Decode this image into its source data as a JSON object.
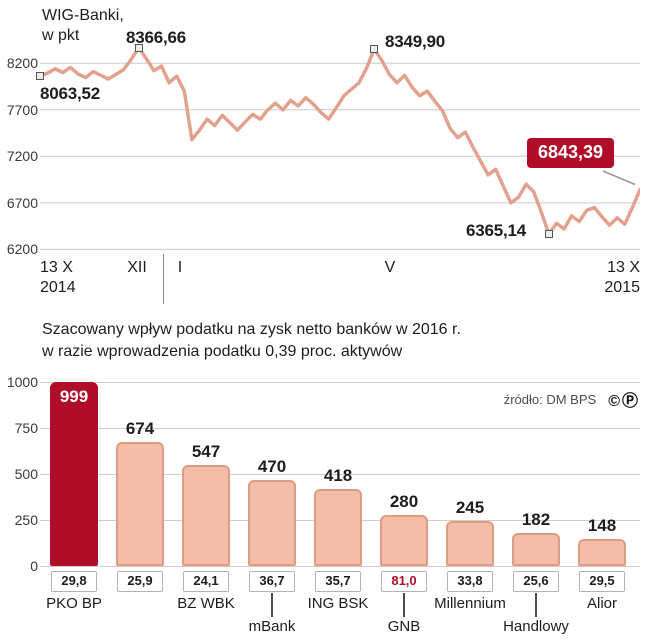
{
  "colors": {
    "accent_red": "#b00d28",
    "line_salmon": "#e2a28e",
    "bar_fill": "#f3bda9",
    "bar_border": "#de9d83",
    "grid": "#cccccc",
    "text": "#1d1d1b",
    "muted": "#4d4d4d"
  },
  "chart_data": [
    {
      "type": "line",
      "title": "WIG-Banki, w pkt",
      "title_lines": [
        "WIG-Banki,",
        "w pkt"
      ],
      "xlabel": "",
      "ylabel": "",
      "ylim": [
        6140,
        8460
      ],
      "y_ticks": [
        8200,
        7700,
        7200,
        6700,
        6200
      ],
      "x_ticks": [
        {
          "lines": [
            "13 X",
            "2014"
          ],
          "align": "left",
          "pos_pct": 0
        },
        {
          "lines": [
            "XII"
          ],
          "pos_pct": 16.2
        },
        {
          "lines": [
            "I"
          ],
          "pos_pct": 23.3
        },
        {
          "lines": [
            "V"
          ],
          "pos_pct": 58.3
        },
        {
          "lines": [
            "13 X",
            "2015"
          ],
          "align": "right",
          "pos_pct": 100
        }
      ],
      "year_divider_pct": 20.5,
      "values": [
        8063,
        8095,
        8140,
        8100,
        8155,
        8085,
        8045,
        8110,
        8070,
        8030,
        8080,
        8130,
        8240,
        8367,
        8250,
        8120,
        8170,
        7990,
        8060,
        7900,
        7380,
        7480,
        7600,
        7530,
        7640,
        7560,
        7480,
        7570,
        7650,
        7600,
        7700,
        7770,
        7700,
        7800,
        7740,
        7830,
        7760,
        7670,
        7600,
        7720,
        7850,
        7920,
        7990,
        8150,
        8350,
        8230,
        8080,
        7990,
        8070,
        7940,
        7850,
        7900,
        7790,
        7690,
        7500,
        7400,
        7460,
        7300,
        7150,
        7000,
        7060,
        6880,
        6700,
        6760,
        6900,
        6820,
        6600,
        6365,
        6480,
        6420,
        6560,
        6500,
        6620,
        6650,
        6550,
        6460,
        6540,
        6470,
        6650,
        6843
      ],
      "key_points": {
        "start": {
          "label": "8063,52",
          "value": 8063.52,
          "index": 0
        },
        "peak1": {
          "label": "8366,66",
          "value": 8366.66,
          "index": 13
        },
        "peak2": {
          "label": "8349,90",
          "value": 8349.9,
          "index": 44
        },
        "low": {
          "label": "6365,14",
          "value": 6365.14,
          "index": 67
        },
        "end": {
          "label": "6843,39",
          "value": 6843.39,
          "index": 79
        }
      }
    },
    {
      "type": "bar",
      "title": "Szacowany wpływ podatku na zysk netto banków w 2016 r. w razie wprowadzenia podatku 0,39 proc. aktywów",
      "title_lines": [
        "Szacowany wpływ podatku na zysk netto banków w 2016 r.",
        "w razie wprowadzenia podatku 0,39 proc. aktywów"
      ],
      "source": "źródło: DM BPS",
      "rights_marks": "©Ⓟ",
      "ylim": [
        0,
        1000
      ],
      "y_ticks": [
        1000,
        750,
        500,
        250,
        0
      ],
      "bars": [
        {
          "bank": "PKO BP",
          "value": 999,
          "impact": "29,8",
          "highlight": true,
          "label_row": 1
        },
        {
          "bank": null,
          "value": 674,
          "impact": "25,9",
          "label_row": 0
        },
        {
          "bank": "BZ WBK",
          "value": 547,
          "impact": "24,1",
          "label_row": 1
        },
        {
          "bank": "mBank",
          "value": 470,
          "impact": "36,7",
          "label_row": 2
        },
        {
          "bank": "ING BSK",
          "value": 418,
          "impact": "35,7",
          "label_row": 1
        },
        {
          "bank": "GNB",
          "value": 280,
          "impact": "81,0",
          "impact_highlight": true,
          "label_row": 2
        },
        {
          "bank": "Millennium",
          "value": 245,
          "impact": "33,8",
          "label_row": 1
        },
        {
          "bank": "Handlowy",
          "value": 182,
          "impact": "25,6",
          "label_row": 2
        },
        {
          "bank": "Alior",
          "value": 148,
          "impact": "29,5",
          "label_row": 1
        }
      ]
    }
  ]
}
